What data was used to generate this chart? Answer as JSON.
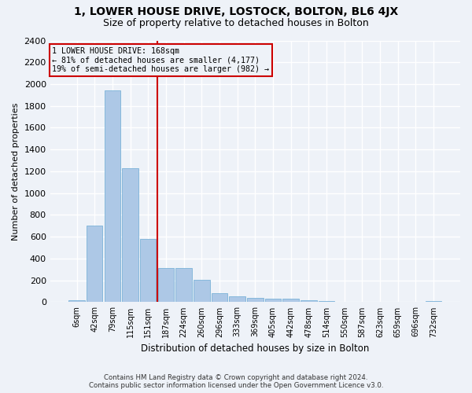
{
  "title": "1, LOWER HOUSE DRIVE, LOSTOCK, BOLTON, BL6 4JX",
  "subtitle": "Size of property relative to detached houses in Bolton",
  "xlabel": "Distribution of detached houses by size in Bolton",
  "ylabel": "Number of detached properties",
  "footnote1": "Contains HM Land Registry data © Crown copyright and database right 2024.",
  "footnote2": "Contains public sector information licensed under the Open Government Licence v3.0.",
  "categories": [
    "6sqm",
    "42sqm",
    "79sqm",
    "115sqm",
    "151sqm",
    "187sqm",
    "224sqm",
    "260sqm",
    "296sqm",
    "333sqm",
    "369sqm",
    "405sqm",
    "442sqm",
    "478sqm",
    "514sqm",
    "550sqm",
    "587sqm",
    "623sqm",
    "659sqm",
    "696sqm",
    "732sqm"
  ],
  "values": [
    15,
    700,
    1940,
    1230,
    580,
    315,
    315,
    205,
    80,
    50,
    40,
    30,
    30,
    15,
    10,
    5,
    5,
    5,
    5,
    5,
    10
  ],
  "bar_color": "#adc8e6",
  "bar_edge_color": "#6aaad4",
  "ylim": [
    0,
    2400
  ],
  "yticks": [
    0,
    200,
    400,
    600,
    800,
    1000,
    1200,
    1400,
    1600,
    1800,
    2000,
    2200,
    2400
  ],
  "vline_index": 5,
  "annotation_title": "1 LOWER HOUSE DRIVE: 168sqm",
  "annotation_line1": "← 81% of detached houses are smaller (4,177)",
  "annotation_line2": "19% of semi-detached houses are larger (982) →",
  "annotation_box_color": "#cc0000",
  "vline_color": "#cc0000",
  "bg_color": "#eef2f8",
  "grid_color": "#ffffff",
  "title_fontsize": 10,
  "subtitle_fontsize": 9
}
